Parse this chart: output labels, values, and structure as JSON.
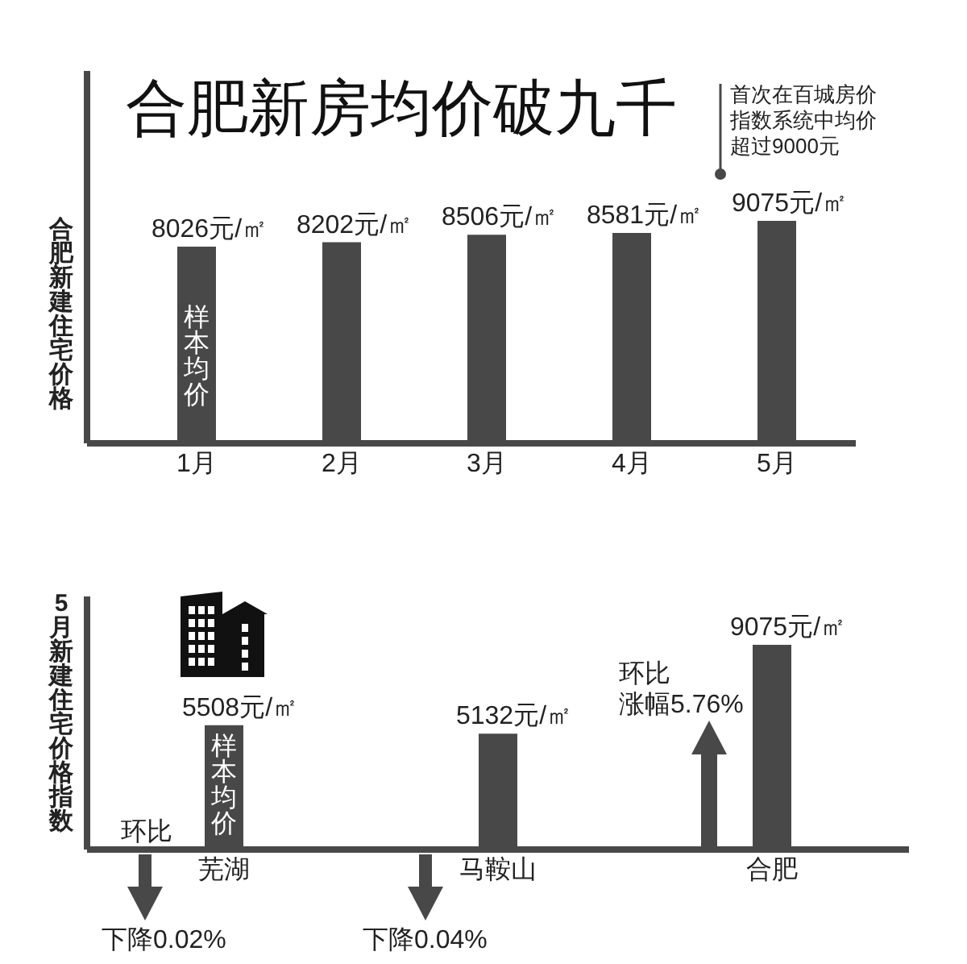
{
  "chart_data": [
    {
      "type": "bar",
      "title": "合肥新房均价破九千",
      "ylabel": "合肥新建住宅价格",
      "categories": [
        "1月",
        "2月",
        "3月",
        "4月",
        "5月"
      ],
      "values": [
        8026,
        8202,
        8506,
        8581,
        9075
      ],
      "value_labels": [
        "8026元/㎡",
        "8202元/㎡",
        "8506元/㎡",
        "8581元/㎡",
        "9075元/㎡"
      ],
      "color": "#484848",
      "annotations": [
        "首次在百城房价指数系统中均价超过9000元",
        "样本均价"
      ],
      "tick_labels": "x"
    },
    {
      "type": "bar",
      "ylabel": "5月新建住宅价格指数",
      "categories": [
        "芜湖",
        "马鞍山",
        "合肥"
      ],
      "values": [
        5508,
        5132,
        9075
      ],
      "value_labels": [
        "5508元/㎡",
        "5132元/㎡",
        "9075元/㎡"
      ],
      "color": "#484848",
      "annotations": [
        "样本均价",
        "环比",
        "下降0.02%",
        "下降0.04%",
        "环比",
        "涨幅5.76%"
      ],
      "tick_labels": "x"
    }
  ]
}
